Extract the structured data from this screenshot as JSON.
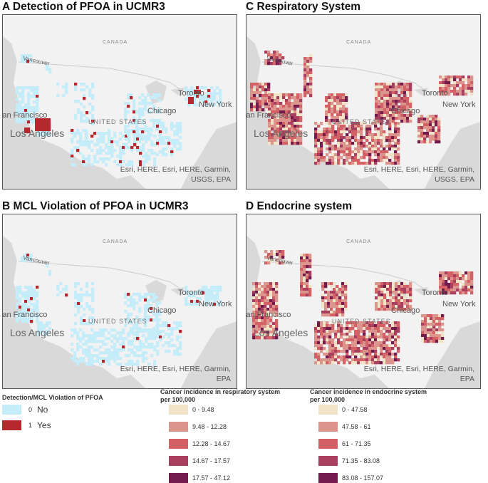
{
  "panels": [
    {
      "id": "A",
      "title": "A Detection of PFOA in UCMR3",
      "attribution": [
        "Esri, HERE, Esri, HERE, Garmin,",
        "USGS, EPA"
      ]
    },
    {
      "id": "C",
      "title": "C Respiratory System",
      "attribution": [
        "Esri, HERE, Esri, HERE, Garmin,",
        "USGS, EPA"
      ]
    },
    {
      "id": "B",
      "title": "B MCL Violation of PFOA in UCMR3",
      "attribution": [
        "Esri, HERE, Esri, HERE, Garmin,",
        "EPA"
      ]
    },
    {
      "id": "D",
      "title": "D Endocrine system",
      "attribution": [
        "Esri, HERE, Esri, HERE, Garmin,",
        "EPA"
      ]
    }
  ],
  "map_labels": {
    "canada": "CANADA",
    "vancouver": "Vancouver",
    "toronto": "Toronto",
    "chicago": "Chicago",
    "new_york": "New York",
    "san_francisco": "San Francisco",
    "united_states": "UNITED STATES",
    "los_angeles": "Los Angeles"
  },
  "legend_pfoa": {
    "title": "Detection/MCL Violation of PFOA",
    "items": [
      {
        "code": "0",
        "label": "No",
        "color": "#c5ecf9"
      },
      {
        "code": "1",
        "label": "Yes",
        "color": "#b5282e"
      }
    ]
  },
  "legend_resp": {
    "title": "Cancer incidence in respiratory system",
    "subtitle": "per 100,000",
    "items": [
      {
        "label": "0 - 9.48",
        "color": "#f1e4c6"
      },
      {
        "label": "9.48 - 12.28",
        "color": "#dc958c"
      },
      {
        "label": "12.28 - 14.67",
        "color": "#d46165"
      },
      {
        "label": "14.67 - 17.57",
        "color": "#a93f5e"
      },
      {
        "label": "17.57 - 47.12",
        "color": "#741b4e"
      }
    ]
  },
  "legend_endo": {
    "title": "Cancer incidence in endocrine system",
    "subtitle": "per 100,000",
    "items": [
      {
        "label": "0 - 47.58",
        "color": "#f1e4c6"
      },
      {
        "label": "47.58 - 61",
        "color": "#dc958c"
      },
      {
        "label": "61 - 71.35",
        "color": "#d46165"
      },
      {
        "label": "71.35 - 83.08",
        "color": "#a93f5e"
      },
      {
        "label": "83.08 - 157.07",
        "color": "#741b4e"
      }
    ]
  }
}
